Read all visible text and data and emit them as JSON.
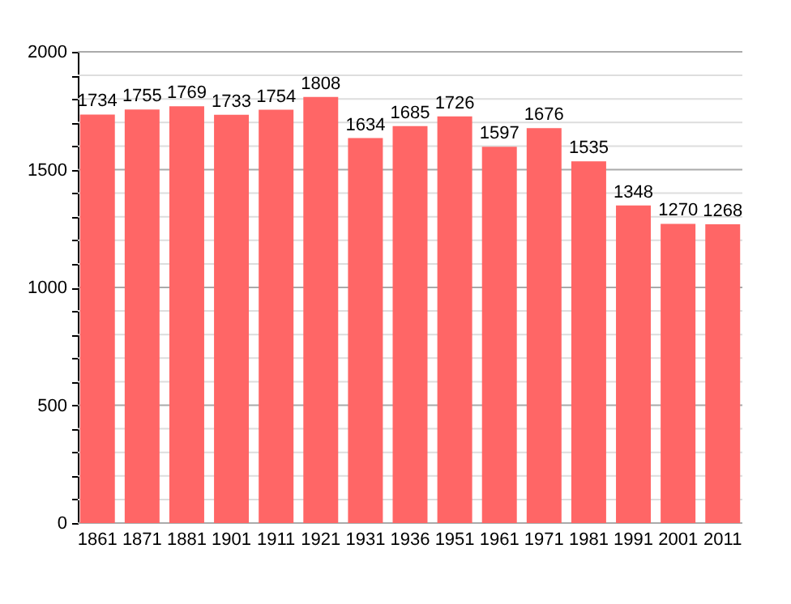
{
  "chart_data": {
    "type": "bar",
    "categories": [
      "1861",
      "1871",
      "1881",
      "1901",
      "1911",
      "1921",
      "1931",
      "1936",
      "1951",
      "1961",
      "1971",
      "1981",
      "1991",
      "2001",
      "2011"
    ],
    "values": [
      1734,
      1755,
      1769,
      1733,
      1754,
      1808,
      1634,
      1685,
      1726,
      1597,
      1676,
      1535,
      1348,
      1270,
      1268
    ],
    "color": "#ff6666",
    "ylim": [
      0,
      2000
    ],
    "yticks": [
      0,
      {
        "value": 100,
        "label": null
      },
      {
        "value": 200,
        "label": null
      },
      {
        "value": 300,
        "label": null
      },
      {
        "value": 400,
        "label": null
      },
      500,
      {
        "value": 600,
        "label": null
      },
      {
        "value": 700,
        "label": null
      },
      {
        "value": 800,
        "label": null
      },
      {
        "value": 900,
        "label": null
      },
      1000,
      {
        "value": 1100,
        "label": null
      },
      {
        "value": 1200,
        "label": null
      },
      {
        "value": 1300,
        "label": null
      },
      {
        "value": 1400,
        "label": null
      },
      1500,
      {
        "value": 1600,
        "label": null
      },
      {
        "value": 1700,
        "label": null
      },
      {
        "value": 1800,
        "label": null
      },
      {
        "value": 1900,
        "label": null
      },
      2000
    ],
    "grid": "y",
    "data_labels": true
  }
}
